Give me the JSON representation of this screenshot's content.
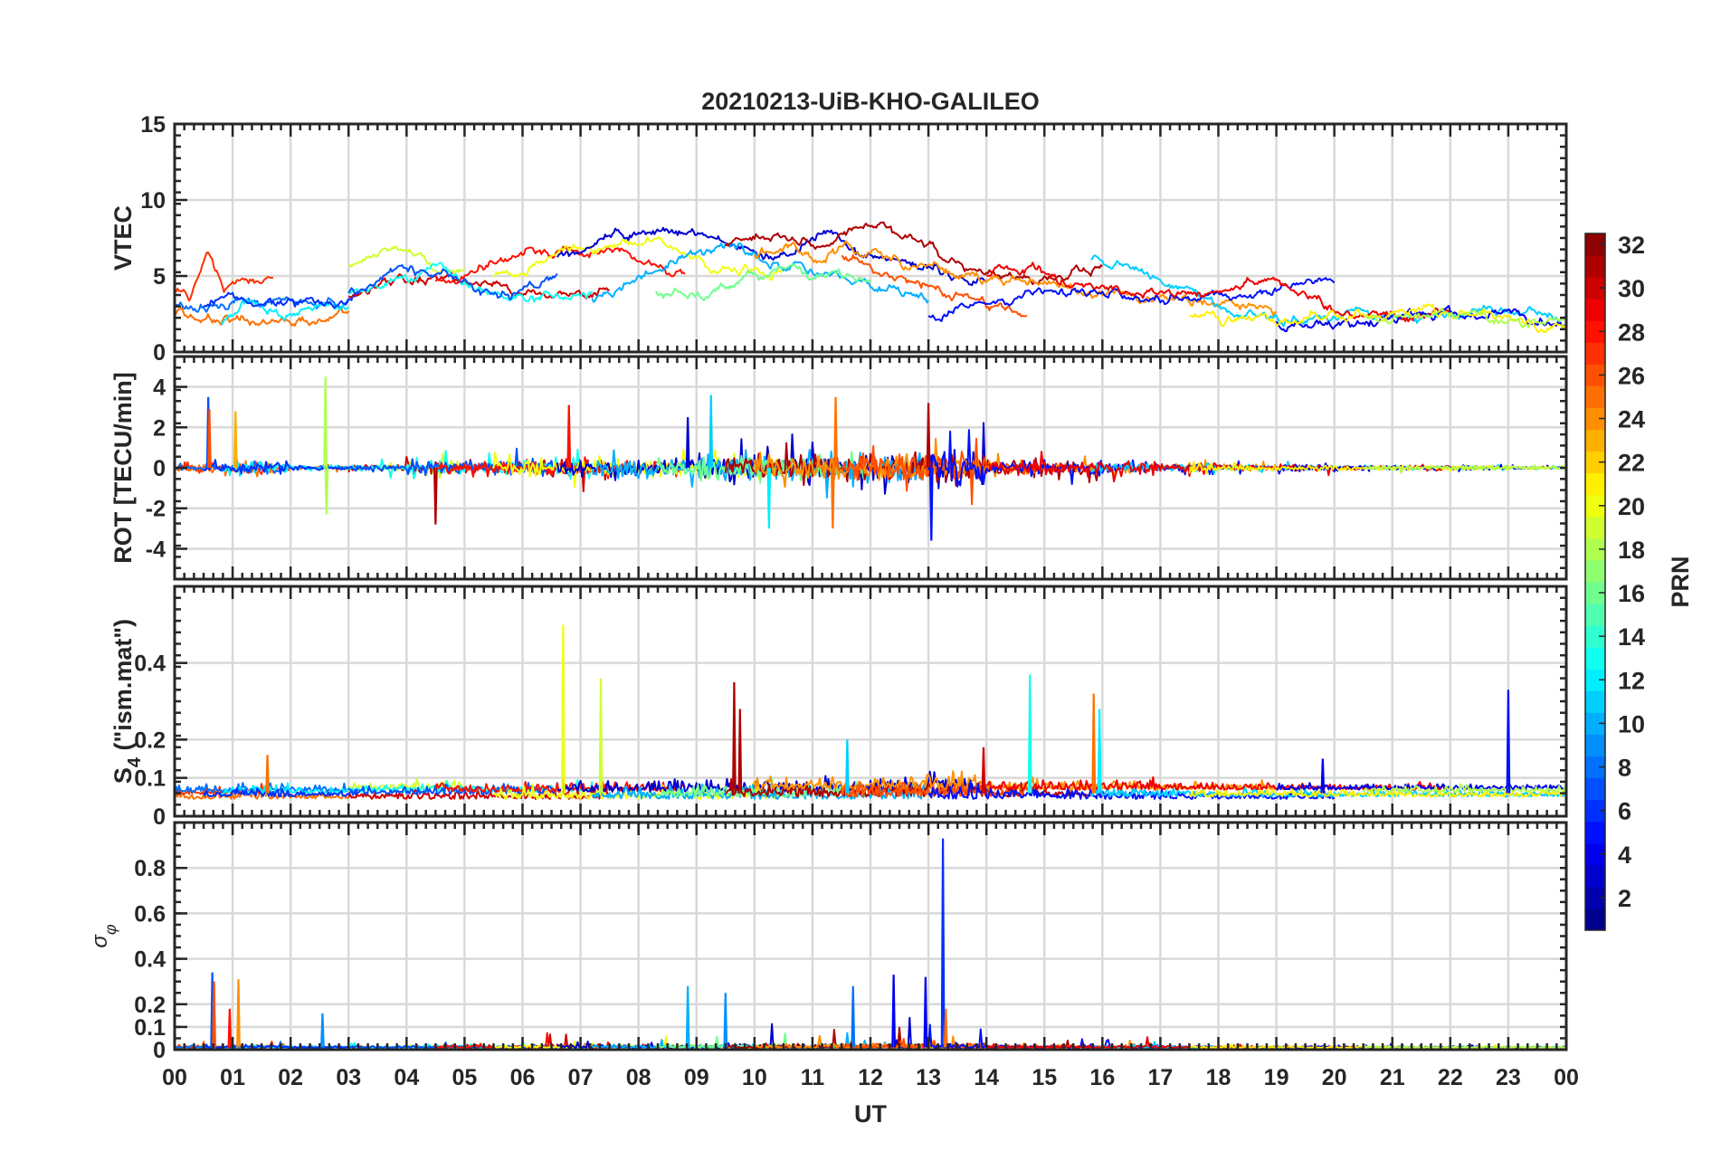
{
  "chart_data": {
    "type": "line",
    "title": "20210213-UiB-KHO-GALILEO",
    "xlabel": "UT",
    "xlim": [
      0,
      24
    ],
    "xticks": [
      0,
      1,
      2,
      3,
      4,
      5,
      6,
      7,
      8,
      9,
      10,
      11,
      12,
      13,
      14,
      15,
      16,
      17,
      18,
      19,
      20,
      21,
      22,
      23,
      24
    ],
    "xtick_labels": [
      "00",
      "01",
      "02",
      "03",
      "04",
      "05",
      "06",
      "07",
      "08",
      "09",
      "10",
      "11",
      "12",
      "13",
      "14",
      "15",
      "16",
      "17",
      "18",
      "19",
      "20",
      "21",
      "22",
      "23",
      "00"
    ],
    "grid": true,
    "panels": [
      {
        "key": "vtec",
        "ylabel": "VTEC",
        "ylim": [
          0,
          15
        ],
        "yticks": [
          0,
          5,
          10,
          15
        ],
        "ytick_labels": [
          "0",
          "5",
          "10",
          "15"
        ]
      },
      {
        "key": "rot",
        "ylabel": "ROT [TECU/min]",
        "ylim": [
          -5.5,
          5.5
        ],
        "yticks": [
          -4,
          -2,
          0,
          2,
          4
        ],
        "ytick_labels": [
          "-4",
          "-2",
          "0",
          "2",
          "4"
        ]
      },
      {
        "key": "s4",
        "ylabel": "S",
        "ylabel_sub": "4",
        "ylabel_suffix": " (\"ism.mat\")",
        "ylim": [
          0,
          0.6
        ],
        "yticks": [
          0,
          0.1,
          0.2,
          0.4
        ],
        "ytick_labels": [
          "0",
          "0.1",
          "0.2",
          "0.4"
        ]
      },
      {
        "key": "sigma",
        "ylabel": "σ",
        "ylabel_sub": "φ",
        "ylim": [
          0,
          1.0
        ],
        "yticks": [
          0,
          0.1,
          0.2,
          0.4,
          0.6,
          0.8
        ],
        "ytick_labels": [
          "0",
          "0.1",
          "0.2",
          "0.4",
          "0.6",
          "0.8"
        ]
      }
    ],
    "colorbar": {
      "label": "PRN",
      "range": [
        1,
        32
      ],
      "ticks": [
        2,
        4,
        6,
        8,
        10,
        12,
        14,
        16,
        18,
        20,
        22,
        24,
        26,
        28,
        30,
        32
      ],
      "tick_labels": [
        "2",
        "4",
        "6",
        "8",
        "10",
        "12",
        "14",
        "16",
        "18",
        "20",
        "22",
        "24",
        "26",
        "28",
        "30",
        "32"
      ],
      "colormap": "jet"
    },
    "series": [
      {
        "prn": 25,
        "t": [
          0.0,
          3.0
        ],
        "vtec": [
          2.5,
          2.2,
          1.9,
          2.0,
          2.2,
          1.9,
          1.8,
          2.0,
          2.2,
          2.5
        ]
      },
      {
        "prn": 27,
        "t": [
          0.0,
          1.7
        ],
        "vtec": [
          3.8,
          3.6,
          6.5,
          4.0,
          4.8,
          4.5,
          4.8
        ]
      },
      {
        "prn": 8,
        "t": [
          0.0,
          3.0
        ],
        "vtec": [
          3.0,
          2.8,
          3.0,
          3.5,
          3.4,
          3.1,
          3.3,
          3.5
        ]
      },
      {
        "prn": 12,
        "t": [
          0.8,
          3.0
        ],
        "vtec": [
          2.0,
          3.5,
          2.8,
          2.6,
          2.8,
          3.0
        ]
      },
      {
        "prn": 6,
        "t": [
          0.5,
          3.2
        ],
        "vtec": [
          2.8,
          4.0,
          3.0,
          3.2,
          3.3,
          3.0,
          3.9
        ]
      },
      {
        "prn": 19,
        "t": [
          3.0,
          5.0
        ],
        "vtec": [
          5.5,
          6.2,
          7.5,
          6.0,
          5.2,
          5.0
        ]
      },
      {
        "prn": 30,
        "t": [
          3.0,
          7.5
        ],
        "vtec": [
          3.9,
          4.2,
          4.6,
          5.0,
          4.5,
          4.5,
          3.8,
          3.5,
          3.7,
          4.1
        ]
      },
      {
        "prn": 13,
        "t": [
          3.0,
          7.2
        ],
        "vtec": [
          4.0,
          4.3,
          4.8,
          5.5,
          4.2,
          3.8,
          3.5,
          3.8,
          4.0
        ]
      },
      {
        "prn": 7,
        "t": [
          3.0,
          6.6
        ],
        "vtec": [
          3.8,
          4.5,
          5.5,
          5.0,
          4.8,
          4.0,
          3.6,
          4.6,
          5.0
        ]
      },
      {
        "prn": 28,
        "t": [
          4.5,
          8.8
        ],
        "vtec": [
          4.5,
          5.3,
          5.8,
          6.6,
          6.5,
          6.8,
          6.5,
          5.5,
          5.0
        ]
      },
      {
        "prn": 20,
        "t": [
          5.5,
          10.5
        ],
        "vtec": [
          5.0,
          5.5,
          6.5,
          6.8,
          7.0,
          7.2,
          6.5,
          5.2,
          5.5,
          5.0
        ]
      },
      {
        "prn": 3,
        "t": [
          6.6,
          14.0
        ],
        "vtec": [
          6.2,
          6.8,
          7.5,
          7.8,
          8.0,
          7.5,
          7.0,
          6.5,
          7.0,
          7.5,
          6.5,
          6.0,
          5.5,
          5.0,
          4.8
        ]
      },
      {
        "prn": 10,
        "t": [
          7.2,
          13.0
        ],
        "vtec": [
          3.5,
          4.5,
          5.5,
          6.5,
          7.0,
          6.0,
          5.5,
          5.2,
          4.5,
          4.2,
          3.2
        ]
      },
      {
        "prn": 16,
        "t": [
          8.3,
          12.0
        ],
        "vtec": [
          4.0,
          3.5,
          3.8,
          5.0,
          5.5,
          5.0,
          5.3,
          4.5
        ]
      },
      {
        "prn": 31,
        "t": [
          9.5,
          16.0
        ],
        "vtec": [
          7.0,
          8.0,
          7.5,
          7.0,
          8.0,
          8.5,
          7.5,
          6.5,
          5.5,
          5.0,
          4.8,
          5.0,
          5.2
        ]
      },
      {
        "prn": 24,
        "t": [
          10.0,
          19.0
        ],
        "vtec": [
          6.5,
          7.0,
          6.0,
          7.0,
          6.5,
          5.5,
          5.5,
          5.0,
          5.0,
          4.8,
          4.5,
          4.0,
          3.8,
          3.8,
          3.5,
          3.2,
          3.0,
          2.8
        ]
      },
      {
        "prn": 26,
        "t": [
          11.5,
          14.7
        ],
        "vtec": [
          6.5,
          6.0,
          5.0,
          4.5,
          4.0,
          3.5,
          2.8,
          2.3
        ]
      },
      {
        "prn": 5,
        "t": [
          13.0,
          20.0
        ],
        "vtec": [
          2.5,
          3.0,
          3.5,
          3.8,
          4.0,
          3.7,
          3.5,
          3.6,
          4.0,
          4.5,
          4.8
        ]
      },
      {
        "prn": 11,
        "t": [
          15.8,
          24.0
        ],
        "vtec": [
          6.0,
          5.8,
          5.0,
          4.5,
          3.5,
          2.5,
          2.2,
          2.2,
          2.4,
          2.5,
          2.3,
          2.2,
          2.5,
          2.4,
          2.6,
          2.7,
          2.2
        ]
      },
      {
        "prn": 29,
        "t": [
          14.0,
          22.0
        ],
        "vtec": [
          5.0,
          5.5,
          5.0,
          4.5,
          4.2,
          4.0,
          3.8,
          4.0,
          4.5,
          4.8,
          3.8,
          3.0,
          2.4,
          2.3,
          2.4,
          2.2
        ]
      },
      {
        "prn": 4,
        "t": [
          19.0,
          24.0
        ],
        "vtec": [
          2.0,
          1.6,
          1.7,
          2.0,
          2.3,
          2.5,
          2.2,
          2.3,
          2.2,
          2.3
        ]
      },
      {
        "prn": 21,
        "t": [
          17.5,
          24.0
        ],
        "vtec": [
          2.2,
          2.3,
          2.2,
          2.2,
          2.5,
          2.5,
          2.8,
          2.5,
          2.0,
          1.8
        ]
      },
      {
        "prn": 18,
        "t": [
          20.5,
          24.0
        ],
        "vtec": [
          2.2,
          2.3,
          2.5,
          2.6,
          2.2,
          2.0,
          1.8
        ]
      }
    ],
    "rot_activity": [
      0.25,
      0.45,
      0.15,
      0.2,
      0.45,
      0.45,
      0.6,
      0.6,
      0.6,
      0.8,
      0.8,
      0.8,
      1.0,
      1.1,
      0.5,
      0.45,
      0.45,
      0.3,
      0.2,
      0.2,
      0.15,
      0.12,
      0.15,
      0.1
    ],
    "spikes": [
      {
        "panel": "rot",
        "prn": 7,
        "t": 0.58,
        "value": 3.5
      },
      {
        "panel": "rot",
        "prn": 26,
        "t": 0.6,
        "value": 2.9
      },
      {
        "panel": "rot",
        "prn": 23,
        "t": 1.05,
        "value": 2.8
      },
      {
        "panel": "rot",
        "prn": 18,
        "t": 2.6,
        "value": 4.5
      },
      {
        "panel": "rot",
        "prn": 18,
        "t": 2.62,
        "value": -2.3
      },
      {
        "panel": "rot",
        "prn": 31,
        "t": 4.5,
        "value": -2.8
      },
      {
        "panel": "rot",
        "prn": 28,
        "t": 6.8,
        "value": 3.1
      },
      {
        "panel": "rot",
        "prn": 11,
        "t": 9.25,
        "value": 3.6
      },
      {
        "panel": "rot",
        "prn": 3,
        "t": 8.85,
        "value": 2.5
      },
      {
        "panel": "rot",
        "prn": 12,
        "t": 10.25,
        "value": -3.0
      },
      {
        "panel": "rot",
        "prn": 25,
        "t": 11.4,
        "value": 3.5
      },
      {
        "panel": "rot",
        "prn": 25,
        "t": 11.35,
        "value": -3.0
      },
      {
        "panel": "rot",
        "prn": 31,
        "t": 13.0,
        "value": 3.2
      },
      {
        "panel": "rot",
        "prn": 5,
        "t": 13.05,
        "value": -3.6
      },
      {
        "panel": "s4",
        "prn": 20,
        "t": 6.7,
        "value": 0.5
      },
      {
        "panel": "s4",
        "prn": 19,
        "t": 7.35,
        "value": 0.36
      },
      {
        "panel": "s4",
        "prn": 31,
        "t": 9.65,
        "value": 0.35
      },
      {
        "panel": "s4",
        "prn": 31,
        "t": 9.75,
        "value": 0.28
      },
      {
        "panel": "s4",
        "prn": 11,
        "t": 11.6,
        "value": 0.2
      },
      {
        "panel": "s4",
        "prn": 30,
        "t": 13.95,
        "value": 0.18
      },
      {
        "panel": "s4",
        "prn": 13,
        "t": 14.75,
        "value": 0.37
      },
      {
        "panel": "s4",
        "prn": 25,
        "t": 15.85,
        "value": 0.32
      },
      {
        "panel": "s4",
        "prn": 12,
        "t": 15.95,
        "value": 0.28
      },
      {
        "panel": "s4",
        "prn": 5,
        "t": 23.0,
        "value": 0.33
      },
      {
        "panel": "s4",
        "prn": 25,
        "t": 1.6,
        "value": 0.16
      },
      {
        "panel": "s4",
        "prn": 4,
        "t": 19.8,
        "value": 0.15
      },
      {
        "panel": "sigma",
        "prn": 7,
        "t": 0.65,
        "value": 0.34
      },
      {
        "panel": "sigma",
        "prn": 26,
        "t": 0.68,
        "value": 0.3
      },
      {
        "panel": "sigma",
        "prn": 24,
        "t": 1.1,
        "value": 0.31
      },
      {
        "panel": "sigma",
        "prn": 28,
        "t": 0.95,
        "value": 0.18
      },
      {
        "panel": "sigma",
        "prn": 9,
        "t": 2.55,
        "value": 0.16
      },
      {
        "panel": "sigma",
        "prn": 10,
        "t": 8.85,
        "value": 0.28
      },
      {
        "panel": "sigma",
        "prn": 9,
        "t": 9.5,
        "value": 0.25
      },
      {
        "panel": "sigma",
        "prn": 8,
        "t": 11.7,
        "value": 0.28
      },
      {
        "panel": "sigma",
        "prn": 4,
        "t": 12.4,
        "value": 0.33
      },
      {
        "panel": "sigma",
        "prn": 4,
        "t": 12.95,
        "value": 0.32
      },
      {
        "panel": "sigma",
        "prn": 6,
        "t": 13.25,
        "value": 0.93
      },
      {
        "panel": "sigma",
        "prn": 25,
        "t": 13.3,
        "value": 0.18
      }
    ]
  }
}
